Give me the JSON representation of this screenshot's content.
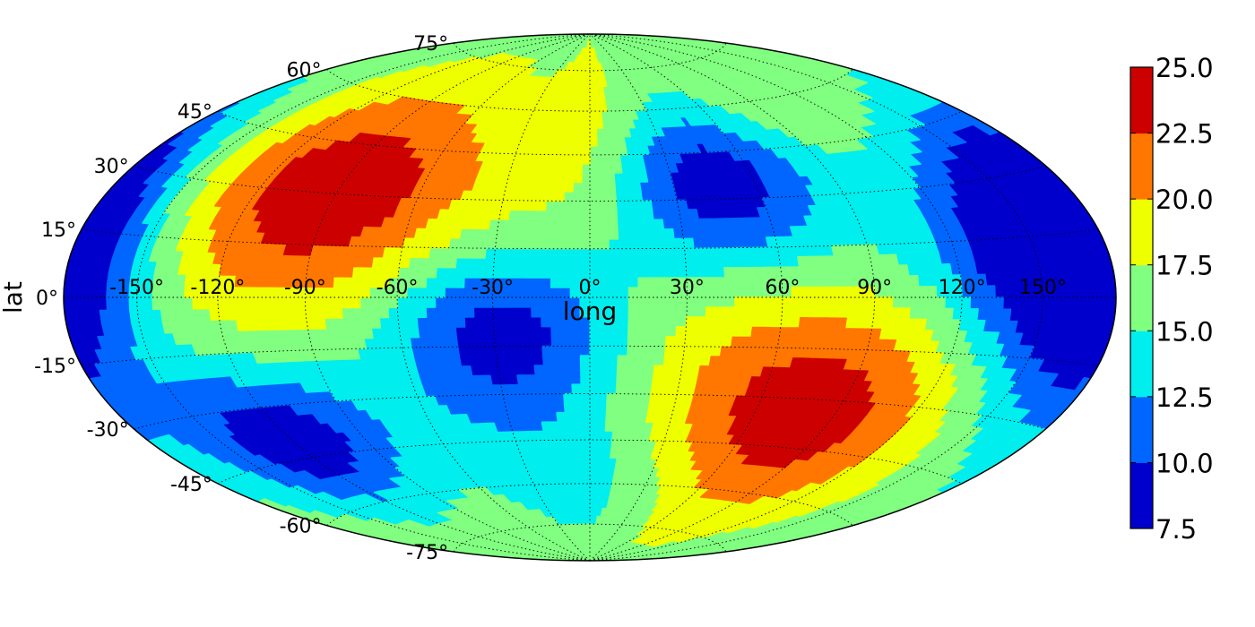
{
  "chart_data": {
    "type": "heatmap",
    "projection": "hammer",
    "title": "",
    "xlabel": "long",
    "ylabel": "lat",
    "xlim": [
      -180,
      180
    ],
    "ylim": [
      -90,
      90
    ],
    "grid": true,
    "lon_ticks": [
      -150,
      -120,
      -90,
      -60,
      -30,
      0,
      30,
      60,
      90,
      120,
      150
    ],
    "lon_tick_labels": [
      "-150°",
      "-120°",
      "-90°",
      "-60°",
      "-30°",
      "0°",
      "30°",
      "60°",
      "90°",
      "120°",
      "150°"
    ],
    "lat_ticks": [
      75,
      60,
      45,
      30,
      15,
      0,
      -15,
      -30,
      -45,
      -60,
      -75
    ],
    "lat_tick_labels": [
      "75°",
      "60°",
      "45°",
      "30°",
      "15°",
      "0°",
      "-15°",
      "-30°",
      "-45°",
      "-60°",
      "-75°"
    ],
    "colorbar": {
      "levels": [
        7.5,
        10.0,
        12.5,
        15.0,
        17.5,
        20.0,
        22.5,
        25.0
      ],
      "tick_labels": [
        "7.5",
        "10.0",
        "12.5",
        "15.0",
        "17.5",
        "20.0",
        "22.5",
        "25.0"
      ],
      "colors": [
        "#0000cd",
        "#0066ff",
        "#00eeee",
        "#80ff80",
        "#eeff00",
        "#ff7700",
        "#cd0000"
      ]
    },
    "field": {
      "base": 16.5,
      "components": [
        {
          "lon": -90,
          "lat": 30,
          "amplitude": 8.0,
          "sigma_lon": 40,
          "sigma_lat": 24
        },
        {
          "lon": 75,
          "lat": -35,
          "amplitude": 8.0,
          "sigma_lon": 40,
          "sigma_lat": 24
        },
        {
          "lon": 45,
          "lat": 35,
          "amplitude": -8.5,
          "sigma_lon": 28,
          "sigma_lat": 18
        },
        {
          "lon": -28,
          "lat": -10,
          "amplitude": -8.5,
          "sigma_lon": 27,
          "sigma_lat": 20
        },
        {
          "lon": -120,
          "lat": -40,
          "amplitude": -8.5,
          "sigma_lon": 30,
          "sigma_lat": 15
        },
        {
          "lon": 150,
          "lat": 15,
          "amplitude": -8.5,
          "sigma_lon": 30,
          "sigma_lat": 22
        },
        {
          "lon": -180,
          "lat": 15,
          "amplitude": -3.5,
          "sigma_lon": 25,
          "sigma_lat": 25
        },
        {
          "lon": 180,
          "lat": 15,
          "amplitude": -3.5,
          "sigma_lon": 25,
          "sigma_lat": 25
        },
        {
          "lon": 165,
          "lat": -15,
          "amplitude": -2.5,
          "sigma_lon": 25,
          "sigma_lat": 20
        },
        {
          "lon": 0,
          "lat": -55,
          "amplitude": -3.0,
          "sigma_lon": 40,
          "sigma_lat": 20
        },
        {
          "lon": 120,
          "lat": 60,
          "amplitude": 1.5,
          "sigma_lon": 40,
          "sigma_lat": 15
        },
        {
          "lon": 0,
          "lat": 45,
          "amplitude": 2.5,
          "sigma_lon": 20,
          "sigma_lat": 30
        }
      ]
    }
  }
}
